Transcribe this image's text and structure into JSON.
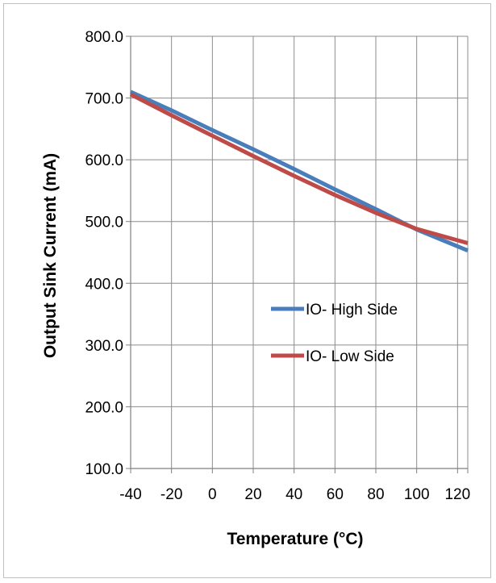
{
  "chart_data": {
    "type": "line",
    "title": "",
    "xlabel": "Temperature (°C)",
    "ylabel": "Output Sink Current (mA)",
    "xlim": [
      -40,
      125
    ],
    "ylim": [
      100,
      800
    ],
    "x_ticks": [
      "-40",
      "-20",
      "0",
      "20",
      "40",
      "60",
      "80",
      "100",
      "120"
    ],
    "y_ticks": [
      "100.0",
      "200.0",
      "300.0",
      "400.0",
      "500.0",
      "600.0",
      "700.0",
      "800.0"
    ],
    "x_tick_values": [
      -40,
      -20,
      0,
      20,
      40,
      60,
      80,
      100,
      120
    ],
    "y_tick_values": [
      100,
      200,
      300,
      400,
      500,
      600,
      700,
      800
    ],
    "grid": true,
    "legend_position": "center-right",
    "series": [
      {
        "name": "IO- High Side",
        "color": "#4a7ebb",
        "x": [
          -40,
          -20,
          0,
          20,
          40,
          60,
          80,
          100,
          125
        ],
        "y": [
          710,
          680,
          648,
          617,
          585,
          552,
          520,
          487,
          453
        ]
      },
      {
        "name": "IO- Low Side",
        "color": "#be4b48",
        "x": [
          -40,
          -20,
          0,
          20,
          40,
          60,
          80,
          100,
          125
        ],
        "y": [
          706,
          672,
          639,
          606,
          574,
          543,
          514,
          488,
          465
        ]
      }
    ]
  }
}
